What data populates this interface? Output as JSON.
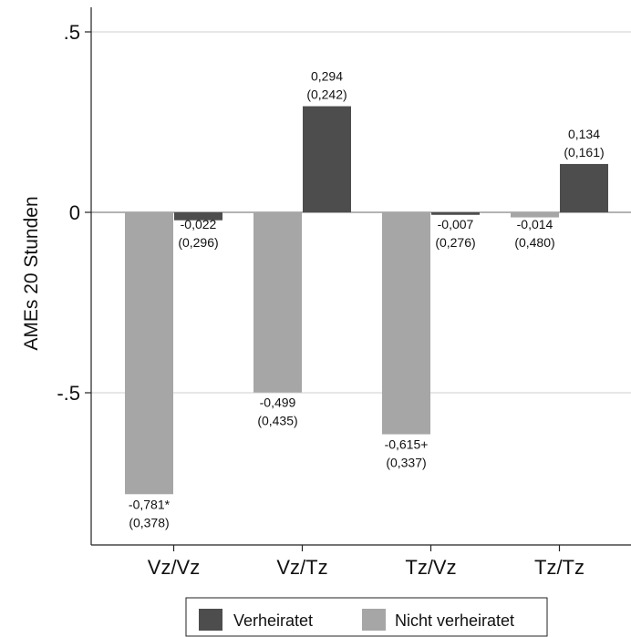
{
  "chart_data": {
    "type": "bar",
    "ylabel": "AMEs 20 Stunden",
    "ylim": [
      -0.9,
      0.57
    ],
    "yticks": [
      {
        "value": 0.5,
        "label": ".5"
      },
      {
        "value": 0,
        "label": "0"
      },
      {
        "value": -0.5,
        "label": "-.5"
      }
    ],
    "categories": [
      "Vz/Vz",
      "Vz/Tz",
      "Tz/Vz",
      "Tz/Tz"
    ],
    "series": [
      {
        "name": "Nicht verheiratet",
        "color": "#a6a6a6",
        "values": [
          -0.781,
          -0.499,
          -0.615,
          -0.014
        ],
        "labels": [
          "-0,781*",
          "-0,499",
          "-0,615+",
          "-0,014"
        ],
        "se_labels": [
          "(0,378)",
          "(0,435)",
          "(0,337)",
          "(0,480)"
        ]
      },
      {
        "name": "Verheiratet",
        "color": "#4d4d4d",
        "values": [
          -0.022,
          0.294,
          -0.007,
          0.134
        ],
        "labels": [
          "-0,022",
          "0,294",
          "-0,007",
          "0,134"
        ],
        "se_labels": [
          "(0,296)",
          "(0,242)",
          "(0,276)",
          "(0,161)"
        ]
      }
    ],
    "legend": {
      "position": "bottom",
      "entries": [
        {
          "label": "Verheiratet",
          "color": "#4d4d4d"
        },
        {
          "label": "Nicht verheiratet",
          "color": "#a6a6a6"
        }
      ]
    },
    "grid": true
  }
}
